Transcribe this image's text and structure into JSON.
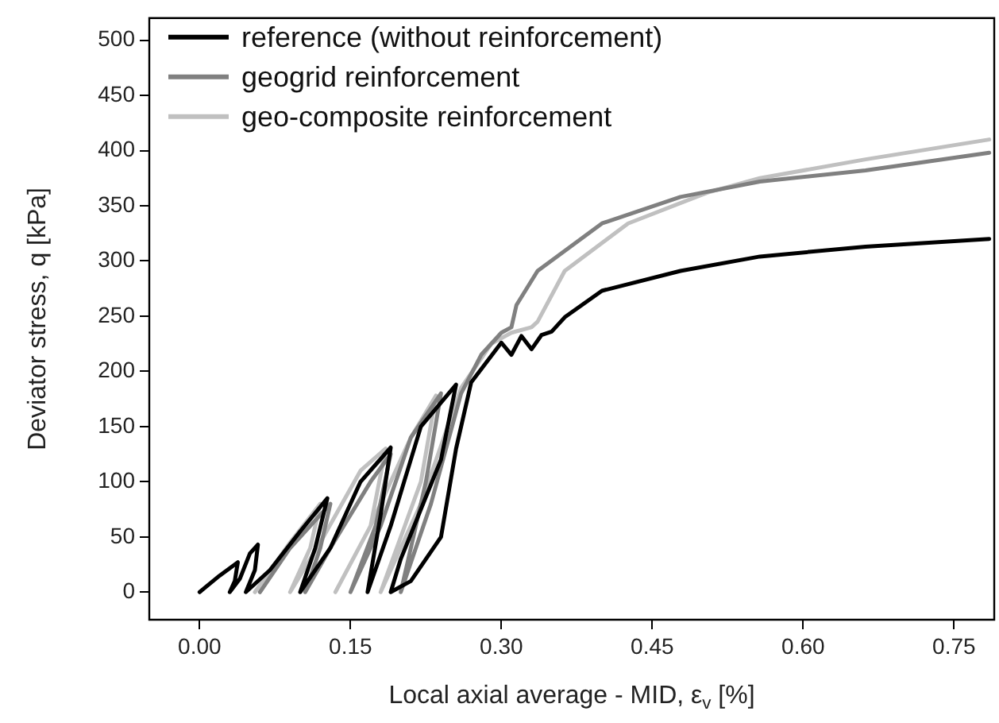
{
  "chart_data": {
    "type": "line",
    "xlabel": "Local axial average - MID, ε$_{v}$ [%]",
    "ylabel": "Deviator stress, q [kPa]",
    "xlim": [
      -0.05,
      0.79
    ],
    "ylim": [
      -25,
      520
    ],
    "xticks": [
      {
        "value": 0,
        "label": "0.00"
      },
      {
        "value": 0.15,
        "label": "0.15"
      },
      {
        "value": 0.3,
        "label": "0.30"
      },
      {
        "value": 0.45,
        "label": "0.45"
      },
      {
        "value": 0.6,
        "label": "0.60"
      },
      {
        "value": 0.75,
        "label": "0.75"
      }
    ],
    "yticks": [
      0,
      50,
      100,
      150,
      200,
      250,
      300,
      350,
      400,
      450,
      500
    ],
    "grid": false,
    "legend": "top left",
    "marker": "none",
    "line_style": "solid",
    "series": [
      {
        "name": "reference (without reinforcement)",
        "color": "#000000",
        "x": [
          0,
          0.02,
          0.038,
          0.035,
          0.03,
          0.04,
          0.05,
          0.058,
          0.055,
          0.046,
          0.07,
          0.1,
          0.127,
          0.115,
          0.1,
          0.13,
          0.16,
          0.19,
          0.18,
          0.167,
          0.19,
          0.22,
          0.255,
          0.24,
          0.2,
          0.19,
          0.21,
          0.24,
          0.255,
          0.27,
          0.3,
          0.31,
          0.32,
          0.33,
          0.34,
          0.35,
          0.363,
          0.4,
          0.478,
          0.557,
          0.662,
          0.785
        ],
        "values": [
          0,
          15,
          27,
          10,
          0,
          12,
          35,
          43,
          20,
          0,
          20,
          55,
          85,
          40,
          0,
          40,
          100,
          131,
          70,
          0,
          60,
          150,
          188,
          120,
          30,
          0,
          10,
          50,
          130,
          190,
          226,
          215,
          232,
          220,
          233,
          236,
          249,
          273,
          291,
          304,
          313,
          320
        ]
      },
      {
        "name": "geogrid reinforcement",
        "color": "#808080",
        "x": [
          0.06,
          0.09,
          0.13,
          0.12,
          0.105,
          0.13,
          0.17,
          0.19,
          0.175,
          0.15,
          0.18,
          0.21,
          0.24,
          0.225,
          0.2,
          0.23,
          0.26,
          0.28,
          0.3,
          0.31,
          0.315,
          0.336,
          0.4,
          0.478,
          0.557,
          0.662,
          0.785
        ],
        "values": [
          0,
          40,
          80,
          40,
          0,
          40,
          100,
          125,
          60,
          0,
          60,
          140,
          180,
          100,
          0,
          80,
          180,
          215,
          235,
          240,
          260,
          291,
          334,
          358,
          372,
          382,
          398
        ]
      },
      {
        "name": "geo-composite reinforcement",
        "color": "#c0c0c0",
        "x": [
          0.055,
          0.09,
          0.12,
          0.11,
          0.09,
          0.12,
          0.16,
          0.185,
          0.17,
          0.135,
          0.17,
          0.21,
          0.235,
          0.22,
          0.18,
          0.22,
          0.26,
          0.29,
          0.31,
          0.33,
          0.336,
          0.363,
          0.426,
          0.505,
          0.557,
          0.662,
          0.785
        ],
        "values": [
          0,
          45,
          80,
          40,
          0,
          45,
          110,
          130,
          60,
          0,
          60,
          140,
          178,
          100,
          0,
          80,
          185,
          225,
          235,
          240,
          245,
          291,
          334,
          362,
          375,
          392,
          410
        ]
      }
    ]
  }
}
